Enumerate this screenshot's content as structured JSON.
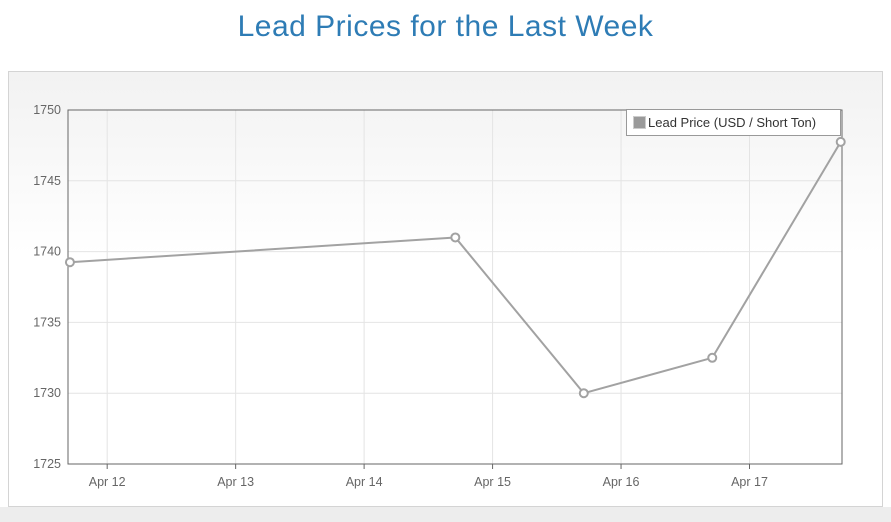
{
  "page": {
    "title": "Lead Prices for the Last Week"
  },
  "colors": {
    "title": "#2e7cb5",
    "series_line": "#a2a2a2",
    "marker_fill": "#ffffff",
    "legend_symbol_fill": "#9a9a9a",
    "grid_line": "#e4e4e4",
    "plot_border": "#666666",
    "axis_label": "#666666",
    "legend_text": "#333333"
  },
  "legend": {
    "label": "Lead Price (USD / Short Ton)"
  },
  "chart_data": {
    "type": "line",
    "title": "Lead Prices for the Last Week",
    "ylabel": "",
    "xlabel": "",
    "legend_entries": [
      "Lead Price (USD / Short Ton)"
    ],
    "legend_position": "top-right-inside",
    "grid": true,
    "y_axis": {
      "min": 1725,
      "max": 1750,
      "ticks": [
        1725,
        1730,
        1735,
        1740,
        1745,
        1750
      ]
    },
    "x_axis": {
      "tick_labels": [
        "Apr 12",
        "Apr 13",
        "Apr 14",
        "Apr 15",
        "Apr 16",
        "Apr 17"
      ],
      "tick_day_offsets": [
        0,
        1,
        2,
        3,
        4,
        5
      ],
      "min_day_offset": -0.305,
      "max_day_offset": 5.72
    },
    "series": [
      {
        "name": "Lead Price (USD / Short Ton)",
        "marker": "circle-white-fill",
        "points": [
          {
            "approx_date": "Apr 11",
            "x_days_from_apr12": -0.29,
            "value": 1739.25
          },
          {
            "approx_date": "Apr 14",
            "x_days_from_apr12": 2.71,
            "value": 1741
          },
          {
            "approx_date": "Apr 15",
            "x_days_from_apr12": 3.71,
            "value": 1730
          },
          {
            "approx_date": "Apr 16",
            "x_days_from_apr12": 4.71,
            "value": 1732.5
          },
          {
            "approx_date": "Apr 17",
            "x_days_from_apr12": 5.71,
            "value": 1747.75
          }
        ]
      }
    ]
  }
}
